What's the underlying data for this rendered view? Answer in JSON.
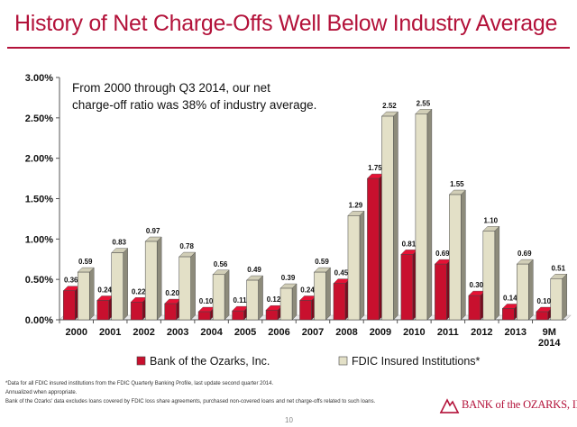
{
  "slide": {
    "title": "History of Net Charge-Offs Well Below Industry Average",
    "page_number": "10",
    "logo_text": "BANK of the OZARKS, INC.",
    "footnotes": [
      "*Data for all FDIC insured institutions from the FDIC Quarterly Banking Profile, last update second quarter 2014.",
      "Annualized when appropriate.",
      "Bank of the Ozarks' data excludes loans covered by FDIC loss share agreements, purchased non-covered loans and net charge-offs related to such loans."
    ],
    "colors": {
      "accent": "#b3123a",
      "series_bank": "#c8102e",
      "series_fdic": "#e3e0c7"
    }
  },
  "callout": {
    "line1": "From 2000 through Q3 2014, our net",
    "line2": "charge-off ratio was 38% of industry average."
  },
  "chart_data": {
    "type": "bar",
    "categories": [
      "2000",
      "2001",
      "2002",
      "2003",
      "2004",
      "2005",
      "2006",
      "2007",
      "2008",
      "2009",
      "2010",
      "2011",
      "2012",
      "2013",
      "9M\n2014"
    ],
    "series": [
      {
        "name": "Bank of the Ozarks, Inc.",
        "color": "#c8102e",
        "values": [
          0.36,
          0.24,
          0.22,
          0.2,
          0.1,
          0.11,
          0.12,
          0.24,
          0.45,
          1.75,
          0.81,
          0.69,
          0.3,
          0.14,
          0.1
        ],
        "labels": [
          "0.36",
          "0.24",
          "0.22",
          "0.20",
          "0.10",
          "0.11",
          "0.12",
          "0.24",
          "0.45",
          "1.75",
          "0.81",
          "0.69",
          "0.30",
          "0.14",
          "0.10"
        ]
      },
      {
        "name": "FDIC Insured Institutions*",
        "color": "#e3e0c7",
        "values": [
          0.59,
          0.83,
          0.97,
          0.78,
          0.56,
          0.49,
          0.39,
          0.59,
          1.29,
          2.52,
          2.55,
          1.55,
          1.1,
          0.69,
          0.51
        ],
        "labels": [
          "0.59",
          "0.83",
          "0.97",
          "0.78",
          "0.56",
          "0.49",
          "0.39",
          "0.59",
          "1.29",
          "2.52",
          "2.55",
          "1.55",
          "1.10",
          "0.69",
          "0.51"
        ]
      }
    ],
    "yticks": [
      "0.00%",
      "0.50%",
      "1.00%",
      "1.50%",
      "2.00%",
      "2.50%",
      "3.00%"
    ],
    "ylim": [
      0,
      3.0
    ],
    "style": "3d-column",
    "legend_position": "bottom"
  }
}
